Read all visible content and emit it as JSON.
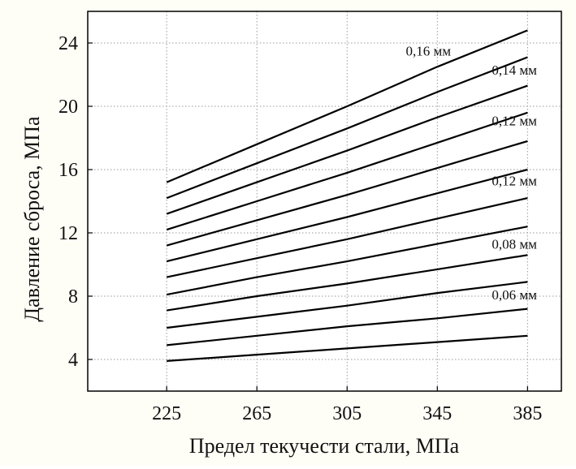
{
  "chart_data": {
    "type": "line",
    "title": "",
    "xlabel": "Предел текучести стали, МПа",
    "ylabel": "Давление сброса, МПа",
    "xlim": [
      190,
      400
    ],
    "ylim": [
      2,
      26
    ],
    "xticks": [
      225,
      265,
      305,
      345,
      385
    ],
    "yticks": [
      4,
      8,
      12,
      16,
      20,
      24
    ],
    "grid": true,
    "line_color": "#000000",
    "x": [
      225,
      265,
      305,
      345,
      385
    ],
    "series": [
      {
        "values": [
          3.9,
          4.3,
          4.7,
          5.1,
          5.5
        ]
      },
      {
        "values": [
          4.9,
          5.5,
          6.1,
          6.6,
          7.2
        ]
      },
      {
        "values": [
          6.0,
          6.7,
          7.4,
          8.2,
          8.9
        ]
      },
      {
        "values": [
          7.1,
          8.0,
          8.8,
          9.7,
          10.6
        ]
      },
      {
        "values": [
          8.1,
          9.2,
          10.2,
          11.3,
          12.4
        ]
      },
      {
        "values": [
          9.2,
          10.4,
          11.6,
          12.9,
          14.2
        ]
      },
      {
        "values": [
          10.2,
          11.6,
          13.0,
          14.5,
          16.0
        ]
      },
      {
        "values": [
          11.2,
          12.8,
          14.4,
          16.1,
          17.8
        ]
      },
      {
        "values": [
          12.2,
          14.0,
          15.8,
          17.7,
          19.6
        ]
      },
      {
        "values": [
          13.2,
          15.2,
          17.2,
          19.3,
          21.3
        ]
      },
      {
        "values": [
          14.2,
          16.4,
          18.6,
          20.9,
          23.1
        ]
      },
      {
        "values": [
          15.2,
          17.6,
          20.0,
          22.5,
          24.8
        ]
      }
    ],
    "annotations": [
      {
        "text": "0,16 мм",
        "x": 331,
        "y": 23.2
      },
      {
        "text": "0,14 мм",
        "x": 385,
        "y": 22.0
      },
      {
        "text": "0,12 мм",
        "x": 385,
        "y": 18.8
      },
      {
        "text": "0,12 мм",
        "x": 385,
        "y": 15.0
      },
      {
        "text": "0,08 мм",
        "x": 385,
        "y": 11.0
      },
      {
        "text": "0,06 мм",
        "x": 385,
        "y": 7.8
      }
    ]
  }
}
